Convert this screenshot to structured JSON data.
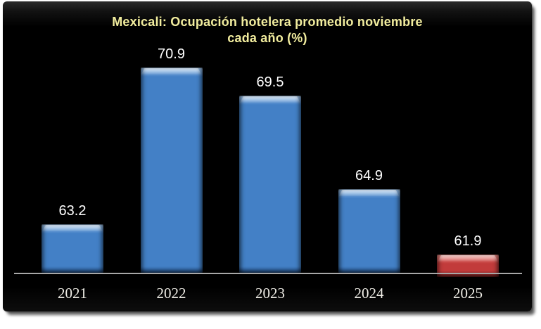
{
  "chart_data": {
    "type": "bar",
    "title": "Mexicali: Ocupación hotelera promedio noviembre cada año (%)",
    "categories": [
      "2021",
      "2022",
      "2023",
      "2024",
      "2025"
    ],
    "values": [
      63.2,
      70.9,
      69.5,
      64.9,
      61.9
    ],
    "value_labels": [
      "63.2",
      "70.9",
      "69.5",
      "64.9",
      "61.9"
    ],
    "xlabel": "",
    "ylabel": "",
    "ylim": [
      60.8,
      72.2
    ],
    "grid": false,
    "legend": "none",
    "bar_colors": [
      "#4380C6",
      "#4380C6",
      "#4380C6",
      "#4380C6",
      "#C23B3B"
    ],
    "bar_highlight_colors": [
      "#A9CBEE",
      "#A9CBEE",
      "#A9CBEE",
      "#A9CBEE",
      "#F0938C"
    ],
    "bar_edge_colors": [
      "#2A5B99",
      "#2A5B99",
      "#2A5B99",
      "#2A5B99",
      "#7E2222"
    ],
    "colors": {
      "page_background": "#FFFFFF",
      "plot_background": "#000000",
      "title": "#F2ED9E",
      "value_label": "#FFFFFF",
      "category_label": "#EFEDE6",
      "axis_line": "#A8A8A8"
    }
  }
}
